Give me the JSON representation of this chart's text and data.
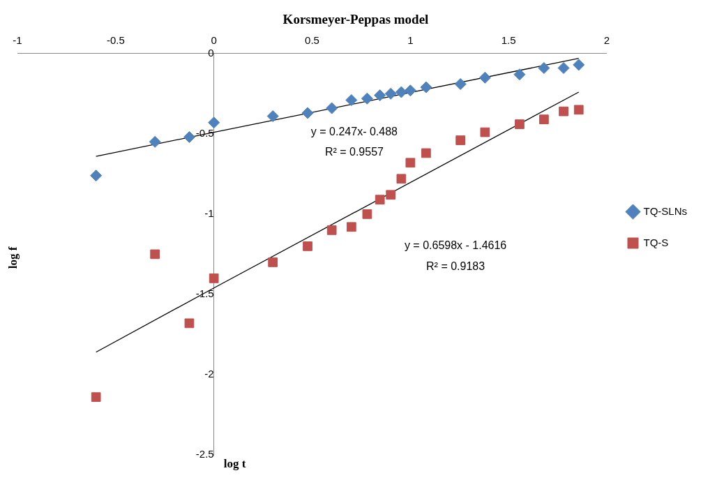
{
  "chart_data": {
    "type": "scatter",
    "title": "Korsmeyer-Peppas model",
    "xlabel": "log t",
    "ylabel": "log f",
    "x": [
      -0.6,
      -0.3,
      -0.125,
      0,
      0.3,
      0.477,
      0.6,
      0.7,
      0.78,
      0.845,
      0.9,
      0.954,
      1,
      1.08,
      1.255,
      1.38,
      1.556,
      1.68,
      1.78,
      1.857
    ],
    "series": [
      {
        "name": "TQ-SLNs",
        "color": "#4f81bd",
        "marker": "diamond",
        "values": [
          -0.76,
          -0.55,
          -0.52,
          -0.43,
          -0.39,
          -0.37,
          -0.34,
          -0.29,
          -0.28,
          -0.26,
          -0.25,
          -0.24,
          -0.23,
          -0.21,
          -0.19,
          -0.15,
          -0.13,
          -0.09,
          -0.09,
          -0.07
        ]
      },
      {
        "name": "TQ-S",
        "color": "#c0504d",
        "marker": "square",
        "values": [
          -2.14,
          -1.25,
          -1.68,
          -1.4,
          -1.3,
          -1.2,
          -1.1,
          -1.08,
          -1.0,
          -0.91,
          -0.88,
          -0.78,
          -0.68,
          -0.62,
          -0.54,
          -0.49,
          -0.44,
          -0.41,
          -0.36,
          -0.35
        ]
      },
      {
        "type": "line",
        "color": "#000000",
        "x": [
          -0.6,
          0,
          1.857
        ],
        "values": [
          -0.64,
          -0.49,
          -0.03
        ]
      },
      {
        "type": "line",
        "color": "#000000",
        "x": [
          -0.6,
          0,
          1.857
        ],
        "values": [
          -1.86,
          -1.46,
          -0.24
        ]
      }
    ],
    "annotations": [
      "y = 0.247x- 0.488",
      "R² = 0.9557",
      "y = 0.6598x - 1.4616",
      "R² = 0.9183"
    ],
    "xlim": [
      -1,
      2
    ],
    "xticks": [
      -1,
      -0.5,
      0,
      0.5,
      1,
      1.5,
      2
    ],
    "ylim": [
      -2.5,
      0
    ],
    "yticks": [
      0,
      -0.5,
      -1,
      -1.5,
      -2,
      -2.5
    ],
    "grid": false,
    "legend": "right"
  }
}
